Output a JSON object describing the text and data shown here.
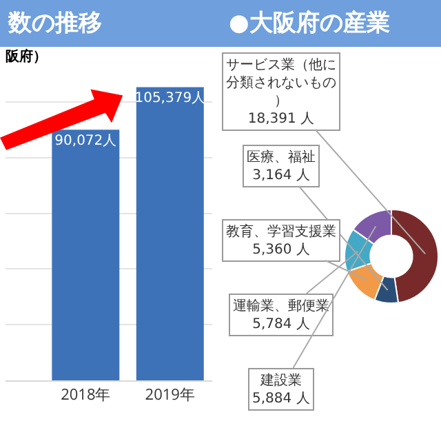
{
  "chart_data": [
    {
      "type": "bar",
      "title": "数の推移",
      "subtitle": "阪府）",
      "categories": [
        "2018年",
        "2019年"
      ],
      "values": [
        90072,
        105379
      ],
      "value_labels": [
        "90,072人",
        "105,379人"
      ],
      "color": "#3d72b8",
      "yticks": [
        {
          "value": 0,
          "label": null
        },
        {
          "value": 20000,
          "label": null
        },
        {
          "value": 40000,
          "label": null
        },
        {
          "value": 60000,
          "label": null
        },
        {
          "value": 80000,
          "label": null
        },
        {
          "value": 100000,
          "label": null
        }
      ],
      "grid": "y",
      "tick_labels": "x",
      "legend": false
    },
    {
      "type": "donut",
      "title": "●大阪府の産業",
      "categories": [
        "サービス業（他に分類されないもの）",
        "医療、福祉",
        "教育、学習支援業",
        "運輸業、郵便業",
        "建設業"
      ],
      "values": [
        18391,
        3164,
        5360,
        5784,
        5884
      ],
      "value_labels": [
        "18,391 人",
        "3,164 人",
        "5,360 人",
        "5,784 人",
        "5,884 人"
      ],
      "colors": [
        "#782a2a",
        "#2a4e78",
        "#f29a48",
        "#44a9c6",
        "#7c5aa8"
      ],
      "legend": false
    }
  ]
}
